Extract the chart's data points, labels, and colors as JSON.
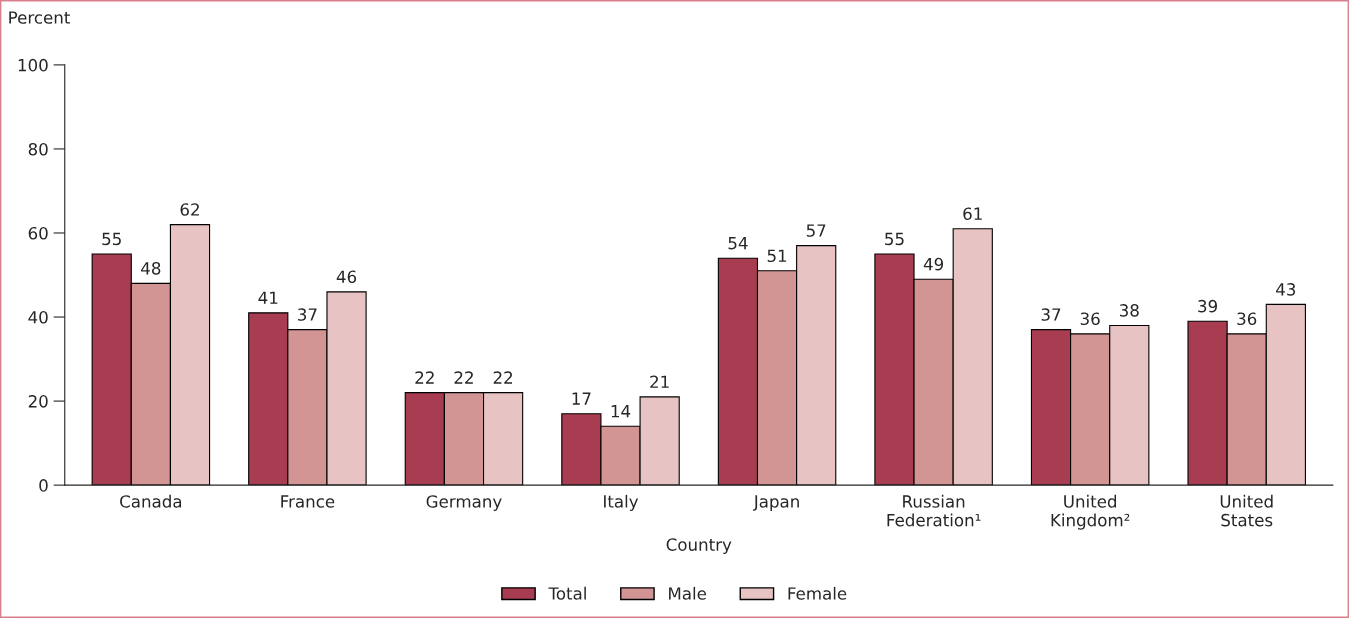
{
  "chart_data": {
    "type": "bar",
    "categories": [
      "Canada",
      "France",
      "Germany",
      "Italy",
      "Japan",
      "Russian\nFederation¹",
      "United\nKingdom²",
      "United\nStates"
    ],
    "xlabel": "Country",
    "ylabel": "Percent",
    "series": [
      {
        "name": "Total",
        "color": "#a83c50",
        "values": [
          55,
          41,
          22,
          17,
          54,
          55,
          37,
          39
        ]
      },
      {
        "name": "Male",
        "color": "#d39494",
        "values": [
          48,
          37,
          22,
          14,
          51,
          49,
          36,
          36
        ]
      },
      {
        "name": "Female",
        "color": "#e7c3c3",
        "values": [
          62,
          46,
          22,
          21,
          57,
          61,
          38,
          43
        ]
      }
    ],
    "ylim": [
      0,
      100
    ],
    "yticks": [
      0,
      20,
      40,
      60,
      80,
      100
    ],
    "data_labels": true,
    "legend": "bottom",
    "grid": false
  }
}
